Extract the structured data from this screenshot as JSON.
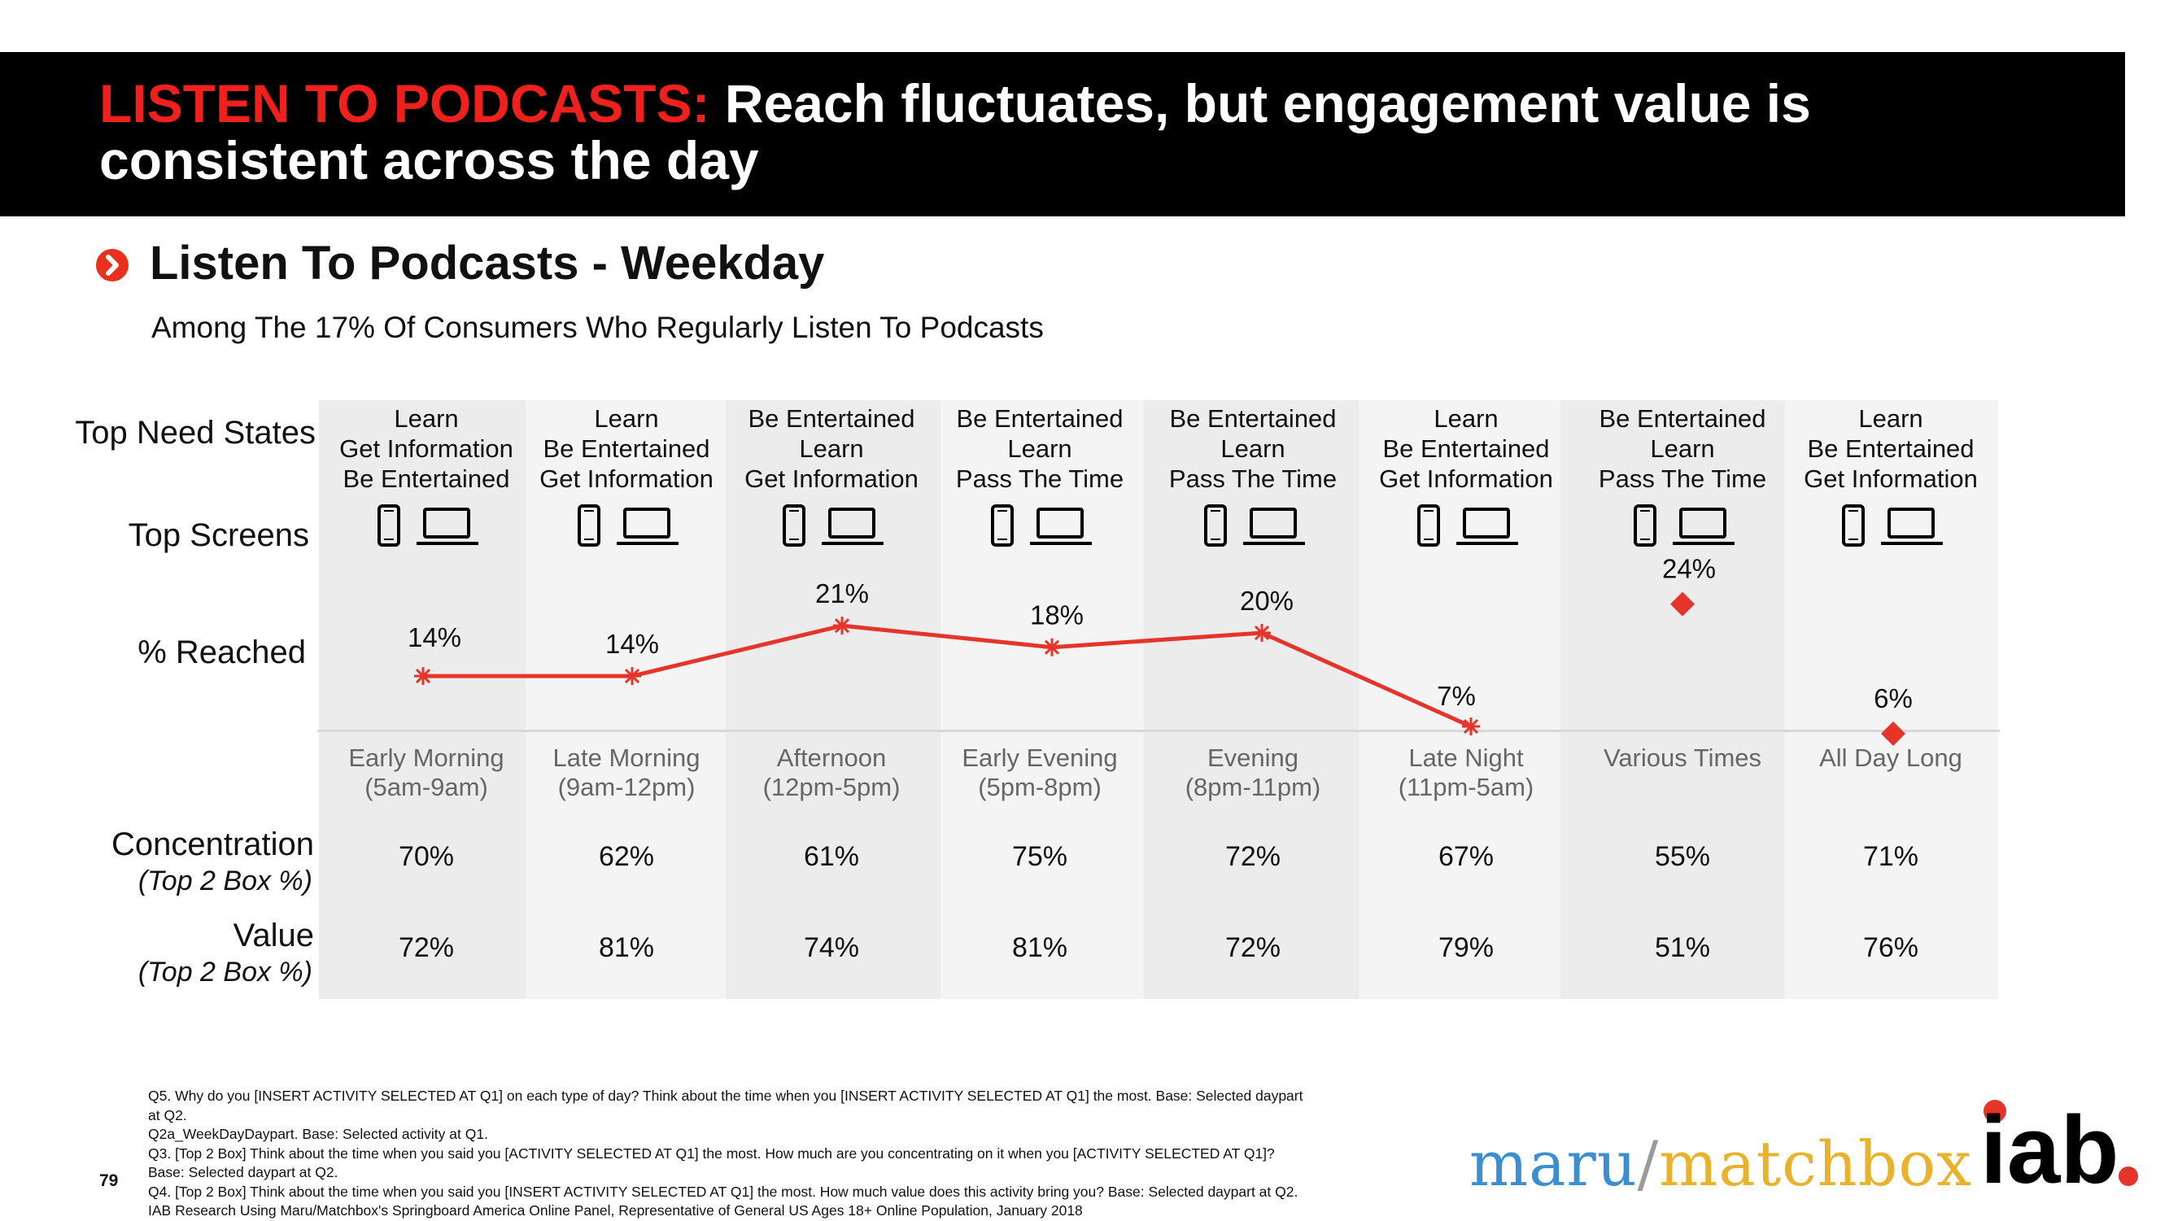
{
  "banner": {
    "title_red": "LISTEN TO PODCASTS:",
    "title_white": " Reach fluctuates, but engagement value is consistent across the day"
  },
  "section": {
    "title": "Listen To Podcasts - Weekday",
    "subtitle": "Among The 17% Of Consumers Who Regularly Listen To Podcasts"
  },
  "row_labels": {
    "need_states": "Top Need States",
    "screens": "Top Screens",
    "reached": "% Reached",
    "concentration": "Concentration",
    "concentration_sub": "(Top 2 Box %)",
    "value": "Value",
    "value_sub": "(Top 2 Box %)"
  },
  "columns": [
    {
      "need_states": [
        "Learn",
        "Get Information",
        "Be Entertained"
      ],
      "daypart": "Early Morning",
      "hours": "(5am-9am)",
      "reached": "14%",
      "concentration": "70%",
      "value": "72%"
    },
    {
      "need_states": [
        "Learn",
        "Be Entertained",
        "Get Information"
      ],
      "daypart": "Late Morning",
      "hours": "(9am-12pm)",
      "reached": "14%",
      "concentration": "62%",
      "value": "81%"
    },
    {
      "need_states": [
        "Be Entertained",
        "Learn",
        "Get Information"
      ],
      "daypart": "Afternoon",
      "hours": "(12pm-5pm)",
      "reached": "21%",
      "concentration": "61%",
      "value": "74%"
    },
    {
      "need_states": [
        "Be Entertained",
        "Learn",
        "Pass The Time"
      ],
      "daypart": "Early Evening",
      "hours": "(5pm-8pm)",
      "reached": "18%",
      "concentration": "75%",
      "value": "81%"
    },
    {
      "need_states": [
        "Be Entertained",
        "Learn",
        "Pass The Time"
      ],
      "daypart": "Evening",
      "hours": "(8pm-11pm)",
      "reached": "20%",
      "concentration": "72%",
      "value": "72%"
    },
    {
      "need_states": [
        "Learn",
        "Be Entertained",
        "Get Information"
      ],
      "daypart": "Late Night",
      "hours": "(11pm-5am)",
      "reached": "7%",
      "concentration": "67%",
      "value": "79%"
    },
    {
      "need_states": [
        "Be Entertained",
        "Learn",
        "Pass The Time"
      ],
      "daypart": "Various Times",
      "hours": "",
      "reached": "24%",
      "concentration": "55%",
      "value": "51%"
    },
    {
      "need_states": [
        "Learn",
        "Be Entertained",
        "Get Information"
      ],
      "daypart": "All Day Long",
      "hours": "",
      "reached": "6%",
      "concentration": "71%",
      "value": "76%"
    }
  ],
  "chart_data": {
    "type": "line",
    "categories": [
      "Early Morning",
      "Late Morning",
      "Afternoon",
      "Early Evening",
      "Evening",
      "Late Night",
      "Various Times",
      "All Day Long"
    ],
    "series": [
      {
        "values": [
          14,
          14,
          21,
          18,
          20,
          7,
          null,
          null
        ],
        "marker": "asterisk",
        "line": true
      },
      {
        "values": [
          null,
          null,
          null,
          null,
          null,
          null,
          24,
          6
        ],
        "marker": "diamond",
        "line": false
      }
    ],
    "unit": "%",
    "color": "#e5342a",
    "grid": false
  },
  "footnotes": [
    "Q5. Why do you [INSERT ACTIVITY SELECTED AT Q1] on each type of day? Think about the time when you [INSERT ACTIVITY SELECTED AT Q1] the most. Base: Selected daypart",
    "at Q2.",
    "Q2a_WeekDayDaypart. Base: Selected activity at Q1.",
    "Q3. [Top 2 Box] Think about the time when you said you [ACTIVITY SELECTED AT Q1] the most.  How much are you concentrating on it when you [ACTIVITY SELECTED AT Q1]?",
    "Base: Selected daypart at Q2.",
    "Q4. [Top 2 Box] Think about the time when you said you [INSERT ACTIVITY SELECTED AT Q1] the most.  How much value does this activity bring you? Base: Selected daypart at Q2.",
    "IAB Research Using Maru/Matchbox's Springboard America Online Panel, Representative of General US Ages 18+ Online Population, January 2018"
  ],
  "page_number": "79",
  "logos": {
    "maru": "maru",
    "slash": "/",
    "matchbox": "matchbox",
    "iab": "iab."
  },
  "icons": [
    "phone-icon",
    "laptop-icon",
    "chevron-right-icon"
  ]
}
